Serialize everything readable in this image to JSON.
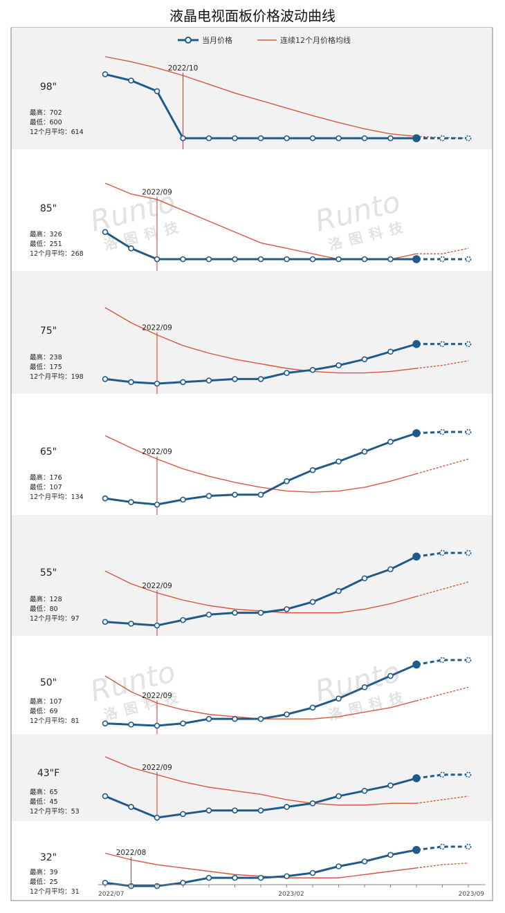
{
  "title": "液晶电视面板价格波动曲线",
  "legend": {
    "current": "当月价格",
    "average": "连续12个月价格均线"
  },
  "x_axis": {
    "start": "2022/07",
    "mid": "2023/02",
    "end": "2023/09"
  },
  "labels": {
    "high": "最高：",
    "low": "最低：",
    "avg": "12个月平均："
  },
  "watermark": {
    "latin": "Runto",
    "chinese": "洛图科技"
  },
  "colors": {
    "current": "#1f5a8a",
    "average": "#d9553f",
    "marker": "#c0392b",
    "panel_gray": "#f2f2f2"
  },
  "chart_data": [
    {
      "type": "line",
      "size": "98\"",
      "high": "702",
      "low": "600",
      "avg": "614",
      "marker_label": "2022/10",
      "x": [
        "2022/07",
        "2022/08",
        "2022/09",
        "2022/10",
        "2022/11",
        "2022/12",
        "2023/01",
        "2023/02",
        "2023/03",
        "2023/04",
        "2023/05",
        "2023/06",
        "2023/07",
        "2023/08",
        "2023/09"
      ],
      "series": [
        {
          "name": "当月价格",
          "values": [
            702,
            692,
            675,
            600,
            600,
            600,
            600,
            600,
            600,
            600,
            600,
            600,
            600,
            600,
            600
          ]
        },
        {
          "name": "连续12个月价格均线",
          "values": [
            730,
            722,
            712,
            700,
            686,
            672,
            660,
            648,
            636,
            625,
            615,
            607,
            603,
            601,
            600
          ]
        }
      ]
    },
    {
      "type": "line",
      "size": "85\"",
      "high": "326",
      "low": "251",
      "avg": "268",
      "marker_label": "2022/09",
      "x": [
        "2022/07",
        "2022/08",
        "2022/09",
        "2022/10",
        "2022/11",
        "2022/12",
        "2023/01",
        "2023/02",
        "2023/03",
        "2023/04",
        "2023/05",
        "2023/06",
        "2023/07",
        "2023/08",
        "2023/09"
      ],
      "series": [
        {
          "name": "当月价格",
          "values": [
            256,
            253,
            251,
            251,
            251,
            251,
            251,
            251,
            251,
            251,
            251,
            251,
            251,
            251,
            251
          ]
        },
        {
          "name": "连续12个月价格均线",
          "values": [
            265,
            263,
            262,
            260,
            258,
            256,
            254,
            253,
            252,
            251,
            251,
            251,
            252,
            252,
            253
          ]
        }
      ]
    },
    {
      "type": "line",
      "size": "75\"",
      "high": "238",
      "low": "175",
      "avg": "198",
      "marker_label": "2022/09",
      "x": [
        "2022/07",
        "2022/08",
        "2022/09",
        "2022/10",
        "2022/11",
        "2022/12",
        "2023/01",
        "2023/02",
        "2023/03",
        "2023/04",
        "2023/05",
        "2023/06",
        "2023/07",
        "2023/08",
        "2023/09"
      ],
      "series": [
        {
          "name": "当月价格",
          "values": [
            178,
            176,
            175,
            176,
            177,
            178,
            178,
            182,
            184,
            187,
            191,
            196,
            201,
            201,
            201
          ]
        },
        {
          "name": "连续12个月价格均线",
          "values": [
            225,
            215,
            207,
            200,
            195,
            191,
            188,
            185,
            183,
            182,
            182,
            183,
            185,
            187,
            190
          ]
        }
      ]
    },
    {
      "type": "line",
      "size": "65\"",
      "high": "176",
      "low": "107",
      "avg": "134",
      "marker_label": "2022/09",
      "x": [
        "2022/07",
        "2022/08",
        "2022/09",
        "2022/10",
        "2022/11",
        "2022/12",
        "2023/01",
        "2023/02",
        "2023/03",
        "2023/04",
        "2023/05",
        "2023/06",
        "2023/07",
        "2023/08",
        "2023/09"
      ],
      "series": [
        {
          "name": "当月价格",
          "values": [
            112,
            109,
            107,
            111,
            114,
            115,
            115,
            126,
            135,
            142,
            150,
            158,
            165,
            166,
            166
          ]
        },
        {
          "name": "连续12个月价格均线",
          "values": [
            163,
            153,
            144,
            136,
            130,
            125,
            121,
            118,
            117,
            118,
            121,
            126,
            132,
            138,
            144
          ]
        }
      ]
    },
    {
      "type": "line",
      "size": "55\"",
      "high": "128",
      "low": "80",
      "avg": "97",
      "marker_label": "2022/09",
      "x": [
        "2022/07",
        "2022/08",
        "2022/09",
        "2022/10",
        "2022/11",
        "2022/12",
        "2023/01",
        "2023/02",
        "2023/03",
        "2023/04",
        "2023/05",
        "2023/06",
        "2023/07",
        "2023/08",
        "2023/09"
      ],
      "series": [
        {
          "name": "当月价格",
          "values": [
            82,
            81,
            80,
            83,
            86,
            87,
            87,
            89,
            93,
            99,
            106,
            111,
            118,
            120,
            120
          ]
        },
        {
          "name": "连续12个月价格均线",
          "values": [
            110,
            103,
            98,
            94,
            91,
            89,
            88,
            87,
            87,
            87,
            89,
            92,
            96,
            100,
            104
          ]
        }
      ]
    },
    {
      "type": "line",
      "size": "50\"",
      "high": "107",
      "low": "69",
      "avg": "81",
      "marker_label": "2022/09",
      "x": [
        "2022/07",
        "2022/08",
        "2022/09",
        "2022/10",
        "2022/11",
        "2022/12",
        "2023/01",
        "2023/02",
        "2023/03",
        "2023/04",
        "2023/05",
        "2023/06",
        "2023/07",
        "2023/08",
        "2023/09"
      ],
      "series": [
        {
          "name": "当月价格",
          "values": [
            70,
            69.5,
            69,
            70,
            72,
            72,
            72,
            74,
            77,
            81,
            86,
            91,
            96,
            98,
            98
          ]
        },
        {
          "name": "连续12个月价格均线",
          "values": [
            91,
            84,
            79,
            76,
            74,
            73,
            72,
            72,
            72,
            73,
            75,
            77,
            80,
            83,
            86
          ]
        }
      ]
    },
    {
      "type": "line",
      "size": "43\"F",
      "high": "65",
      "low": "45",
      "avg": "53",
      "marker_label": "2022/09",
      "x": [
        "2022/07",
        "2022/08",
        "2022/09",
        "2022/10",
        "2022/11",
        "2022/12",
        "2023/01",
        "2023/02",
        "2023/03",
        "2023/04",
        "2023/05",
        "2023/06",
        "2023/07",
        "2023/08",
        "2023/09"
      ],
      "series": [
        {
          "name": "当月价格",
          "values": [
            51,
            48,
            45,
            46,
            47,
            47,
            47,
            48,
            49,
            51,
            52.5,
            54,
            56,
            57,
            57
          ]
        },
        {
          "name": "连续12个月价格均线",
          "values": [
            62,
            59,
            57,
            55,
            53.5,
            52.5,
            51.5,
            50,
            49,
            48.5,
            48.5,
            49,
            49,
            50,
            51
          ]
        }
      ]
    },
    {
      "type": "line",
      "size": "32\"",
      "high": "39",
      "low": "25",
      "avg": "31",
      "marker_label": "2022/08",
      "x": [
        "2022/07",
        "2022/08",
        "2022/09",
        "2022/10",
        "2022/11",
        "2022/12",
        "2023/01",
        "2023/02",
        "2023/03",
        "2023/04",
        "2023/05",
        "2023/06",
        "2023/07",
        "2023/08",
        "2023/09"
      ],
      "series": [
        {
          "name": "当月价格",
          "values": [
            26,
            25,
            25,
            26,
            27.5,
            27.5,
            27.5,
            28,
            29,
            31,
            32.5,
            34.5,
            36,
            37,
            37
          ]
        },
        {
          "name": "连续12个月价格均线",
          "values": [
            35,
            33,
            31.5,
            30.5,
            29.5,
            28.5,
            28,
            27.5,
            27.5,
            27.5,
            28.5,
            29.5,
            30.5,
            31.5,
            32
          ]
        }
      ]
    }
  ]
}
